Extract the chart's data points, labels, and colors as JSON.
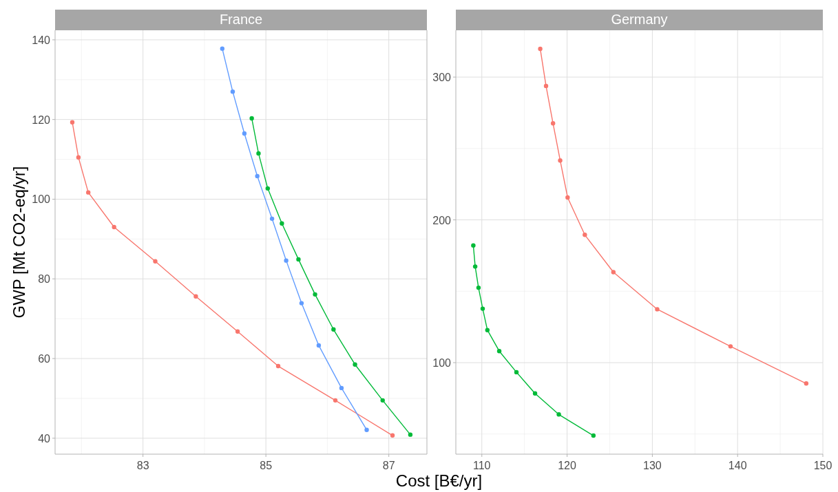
{
  "chart_data": [
    {
      "type": "line",
      "title": "France",
      "xlabel": "Cost [B€/yr]",
      "ylabel": "GWP [Mt CO2-eq/yr]",
      "xlim": [
        81.57,
        87.62
      ],
      "ylim": [
        36,
        142.4
      ],
      "xticks": [
        83,
        85,
        87
      ],
      "yticks": [
        40,
        60,
        80,
        100,
        120,
        140
      ],
      "grid": true,
      "marker": "circle",
      "series": [
        {
          "color": "#f8766d",
          "x": [
            81.85,
            81.95,
            82.11,
            82.53,
            83.2,
            83.86,
            84.54,
            85.2,
            86.13,
            87.06
          ],
          "values": [
            119.3,
            110.5,
            101.7,
            93.0,
            84.4,
            75.6,
            66.8,
            58.1,
            49.5,
            40.7
          ]
        },
        {
          "color": "#00ba38",
          "x": [
            84.77,
            84.88,
            85.03,
            85.26,
            85.53,
            85.8,
            86.1,
            86.45,
            86.9,
            87.35
          ],
          "values": [
            120.3,
            111.5,
            102.7,
            93.9,
            84.9,
            76.1,
            67.3,
            58.5,
            49.5,
            40.9
          ]
        },
        {
          "color": "#619cff",
          "x": [
            84.29,
            84.46,
            84.65,
            84.86,
            85.1,
            85.33,
            85.58,
            85.86,
            86.23,
            86.64
          ],
          "values": [
            137.8,
            127.0,
            116.5,
            105.8,
            95.1,
            84.6,
            73.9,
            63.3,
            52.6,
            42.1
          ]
        }
      ]
    },
    {
      "type": "line",
      "title": "Germany",
      "xlim": [
        106.95,
        150
      ],
      "ylim": [
        35.9,
        332.8
      ],
      "xticks": [
        110,
        120,
        130,
        140,
        150
      ],
      "yticks": [
        100,
        200,
        300
      ],
      "grid": true,
      "marker": "circle",
      "series": [
        {
          "color": "#f8766d",
          "x": [
            116.85,
            117.53,
            118.35,
            119.19,
            120.06,
            122.08,
            125.43,
            130.57,
            139.17,
            148.05
          ],
          "values": [
            319.8,
            293.8,
            267.6,
            241.6,
            215.7,
            189.5,
            163.4,
            137.4,
            111.4,
            85.4
          ]
        },
        {
          "color": "#00ba38",
          "x": [
            109.0,
            109.22,
            109.61,
            110.1,
            110.65,
            112.04,
            114.06,
            116.24,
            119.03,
            123.09
          ],
          "values": [
            182.1,
            167.3,
            152.5,
            137.8,
            122.8,
            108.1,
            93.3,
            78.4,
            63.7,
            48.9
          ]
        }
      ]
    }
  ]
}
